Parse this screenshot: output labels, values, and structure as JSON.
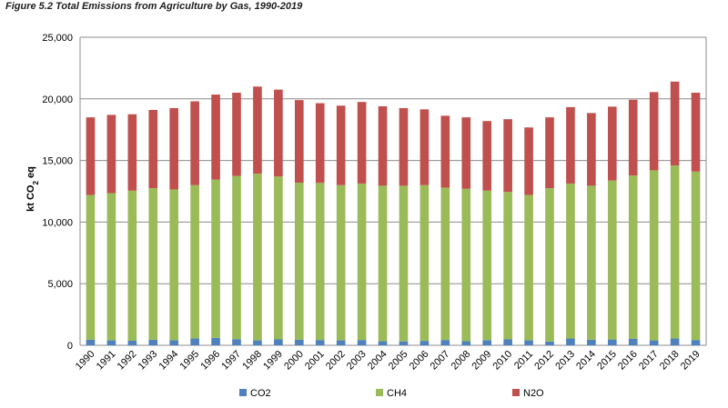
{
  "figure_title": "Figure 5.2 Total Emissions from Agriculture by Gas, 1990-2019",
  "chart_data": {
    "type": "bar",
    "stacked": true,
    "title": "Figure 5.2 Total Emissions from Agriculture by Gas, 1990-2019",
    "ylabel_main": "kt CO",
    "ylabel_sub": "2",
    "ylabel_tail": " eq",
    "xlabel": "",
    "ylim": [
      0,
      25000
    ],
    "yticks": [
      0,
      5000,
      10000,
      15000,
      20000,
      25000
    ],
    "ytick_labels": [
      "0",
      "5,000",
      "10,000",
      "15,000",
      "20,000",
      "25,000"
    ],
    "grid": true,
    "legend_position": "bottom",
    "categories": [
      "1990",
      "1991",
      "1992",
      "1993",
      "1994",
      "1995",
      "1996",
      "1997",
      "1998",
      "1999",
      "2000",
      "2001",
      "2002",
      "2003",
      "2004",
      "2005",
      "2006",
      "2007",
      "2008",
      "2009",
      "2010",
      "2011",
      "2012",
      "2013",
      "2014",
      "2015",
      "2016",
      "2017",
      "2018",
      "2019"
    ],
    "series": [
      {
        "name": "CO2",
        "color": "#4f81bd",
        "values": [
          450,
          400,
          370,
          450,
          420,
          550,
          600,
          500,
          400,
          480,
          450,
          430,
          400,
          430,
          330,
          320,
          360,
          430,
          330,
          420,
          480,
          400,
          310,
          550,
          460,
          470,
          530,
          400,
          550,
          430
        ]
      },
      {
        "name": "CH4",
        "color": "#9bbb59",
        "values": [
          11750,
          11950,
          12180,
          12300,
          12230,
          12450,
          12850,
          13250,
          13530,
          13220,
          12750,
          12750,
          12600,
          12700,
          12620,
          12630,
          12640,
          12370,
          12370,
          12130,
          11970,
          11800,
          12440,
          12580,
          12490,
          12900,
          13250,
          13800,
          14050,
          13670
        ]
      },
      {
        "name": "N2O",
        "color": "#c0504d",
        "values": [
          6300,
          6350,
          6200,
          6350,
          6600,
          6800,
          6900,
          6750,
          7070,
          7050,
          6700,
          6470,
          6450,
          6620,
          6450,
          6300,
          6150,
          5830,
          5800,
          5650,
          5900,
          5480,
          5750,
          6200,
          5900,
          6000,
          6150,
          6350,
          6800,
          6400
        ]
      }
    ]
  }
}
